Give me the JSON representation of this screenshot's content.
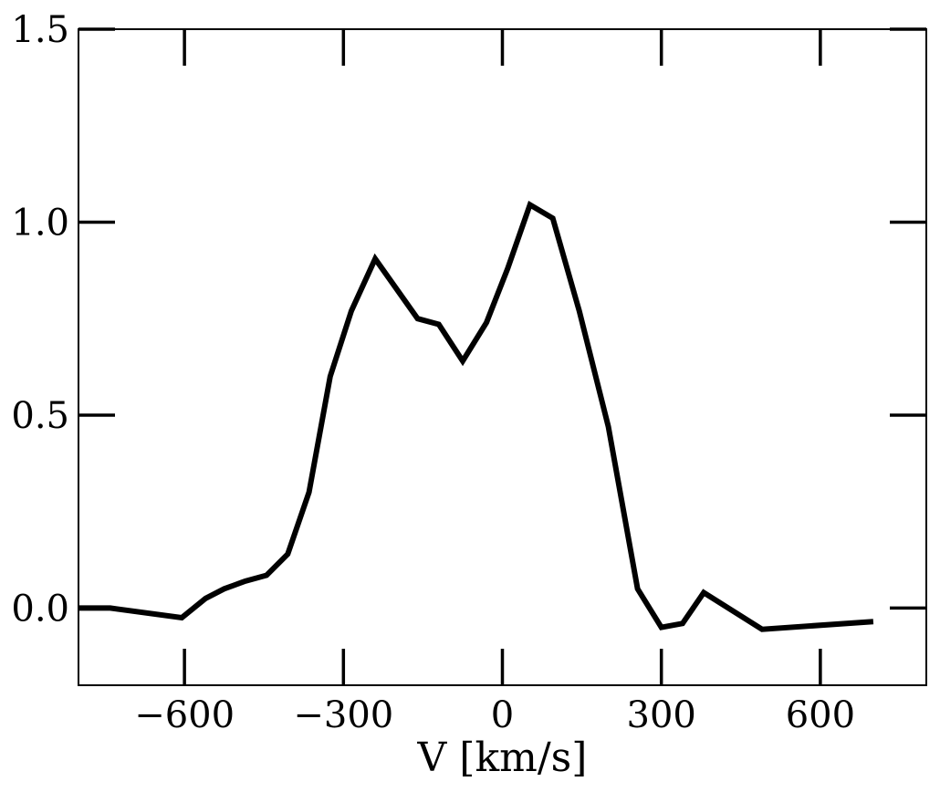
{
  "chart_data": {
    "type": "line",
    "title": "",
    "xlabel": "V [km/s]",
    "ylabel": "",
    "xlim": [
      -800,
      800
    ],
    "ylim": [
      -0.2,
      1.5
    ],
    "x_ticks": [
      {
        "value": -600,
        "label": "−600"
      },
      {
        "value": -300,
        "label": "−300"
      },
      {
        "value": 0,
        "label": "0"
      },
      {
        "value": 300,
        "label": "300"
      },
      {
        "value": 600,
        "label": "600"
      }
    ],
    "y_ticks": [
      {
        "value": 0.0,
        "label": "0.0"
      },
      {
        "value": 0.5,
        "label": "0.5"
      },
      {
        "value": 1.0,
        "label": "1.0"
      },
      {
        "value": 1.5,
        "label": "1.5"
      }
    ],
    "grid": false,
    "series": [
      {
        "color": "#000000",
        "x": [
          -800,
          -740,
          -605,
          -560,
          -525,
          -485,
          -445,
          -405,
          -365,
          -325,
          -285,
          -240,
          -160,
          -120,
          -75,
          -30,
          10,
          52,
          95,
          145,
          200,
          255,
          300,
          340,
          380,
          490,
          700
        ],
        "y": [
          0.0,
          0.0,
          -0.025,
          0.025,
          0.05,
          0.07,
          0.085,
          0.14,
          0.3,
          0.6,
          0.77,
          0.905,
          0.75,
          0.735,
          0.64,
          0.74,
          0.88,
          1.045,
          1.01,
          0.77,
          0.47,
          0.05,
          -0.05,
          -0.04,
          0.04,
          -0.055,
          -0.035
        ]
      }
    ]
  }
}
